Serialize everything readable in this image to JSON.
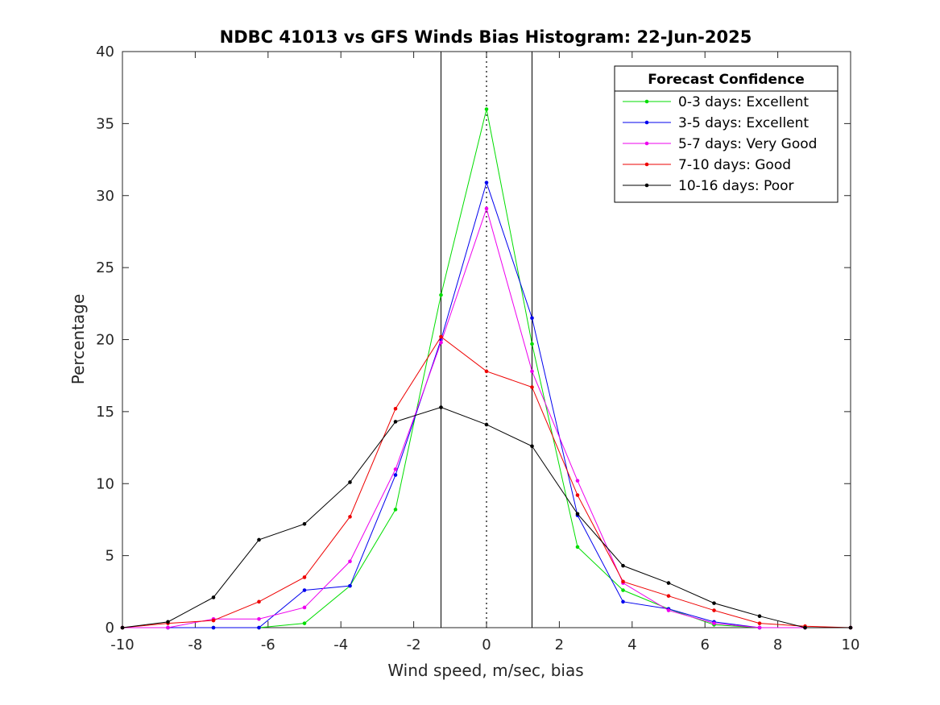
{
  "chart_data": {
    "type": "line",
    "title": "NDBC 41013 vs GFS Winds Bias Histogram: 22-Jun-2025",
    "xlabel": "Wind speed, m/sec, bias",
    "ylabel": "Percentage",
    "xlim": [
      -10,
      10
    ],
    "ylim": [
      0,
      40
    ],
    "xticks": [
      -10,
      -8,
      -6,
      -4,
      -2,
      0,
      2,
      4,
      6,
      8,
      10
    ],
    "yticks": [
      0,
      5,
      10,
      15,
      20,
      25,
      30,
      35,
      40
    ],
    "grid": false,
    "legend": {
      "title": "Forecast Confidence",
      "placement": "top-right"
    },
    "x": [
      -10,
      -8.75,
      -7.5,
      -6.25,
      -5,
      -3.75,
      -2.5,
      -1.25,
      0,
      1.25,
      2.5,
      3.75,
      5,
      6.25,
      7.5,
      8.75,
      10
    ],
    "series": [
      {
        "name": "0-3 days: Excellent",
        "color": "#00dd00",
        "values": [
          0,
          0,
          0,
          0,
          0.3,
          2.9,
          8.2,
          23.1,
          36.0,
          19.7,
          5.6,
          2.6,
          1.3,
          0.2,
          0,
          0,
          0
        ]
      },
      {
        "name": "3-5 days: Excellent",
        "color": "#0000ee",
        "values": [
          0,
          0,
          0,
          0,
          2.6,
          2.9,
          10.6,
          20.0,
          30.9,
          21.5,
          7.8,
          1.8,
          1.3,
          0.4,
          0,
          0,
          0
        ]
      },
      {
        "name": "5-7 days: Very Good",
        "color": "#ee00ee",
        "values": [
          0,
          0,
          0.6,
          0.6,
          1.4,
          4.6,
          11.0,
          19.8,
          29.1,
          17.8,
          10.2,
          3.1,
          1.2,
          0.3,
          0,
          0,
          0
        ]
      },
      {
        "name": "7-10 days: Good",
        "color": "#ee0000",
        "values": [
          0,
          0.3,
          0.5,
          1.8,
          3.5,
          7.7,
          15.2,
          20.2,
          17.8,
          16.7,
          9.2,
          3.2,
          2.2,
          1.2,
          0.3,
          0.1,
          0
        ]
      },
      {
        "name": "10-16 days: Poor",
        "color": "#000000",
        "values": [
          0,
          0.4,
          2.1,
          6.1,
          7.2,
          10.1,
          14.3,
          15.3,
          14.1,
          12.6,
          7.9,
          4.3,
          3.1,
          1.7,
          0.8,
          0,
          0
        ]
      }
    ],
    "reference_lines": {
      "solid_x": [
        -1.25,
        1.25
      ],
      "dotted_x": [
        0
      ]
    }
  }
}
